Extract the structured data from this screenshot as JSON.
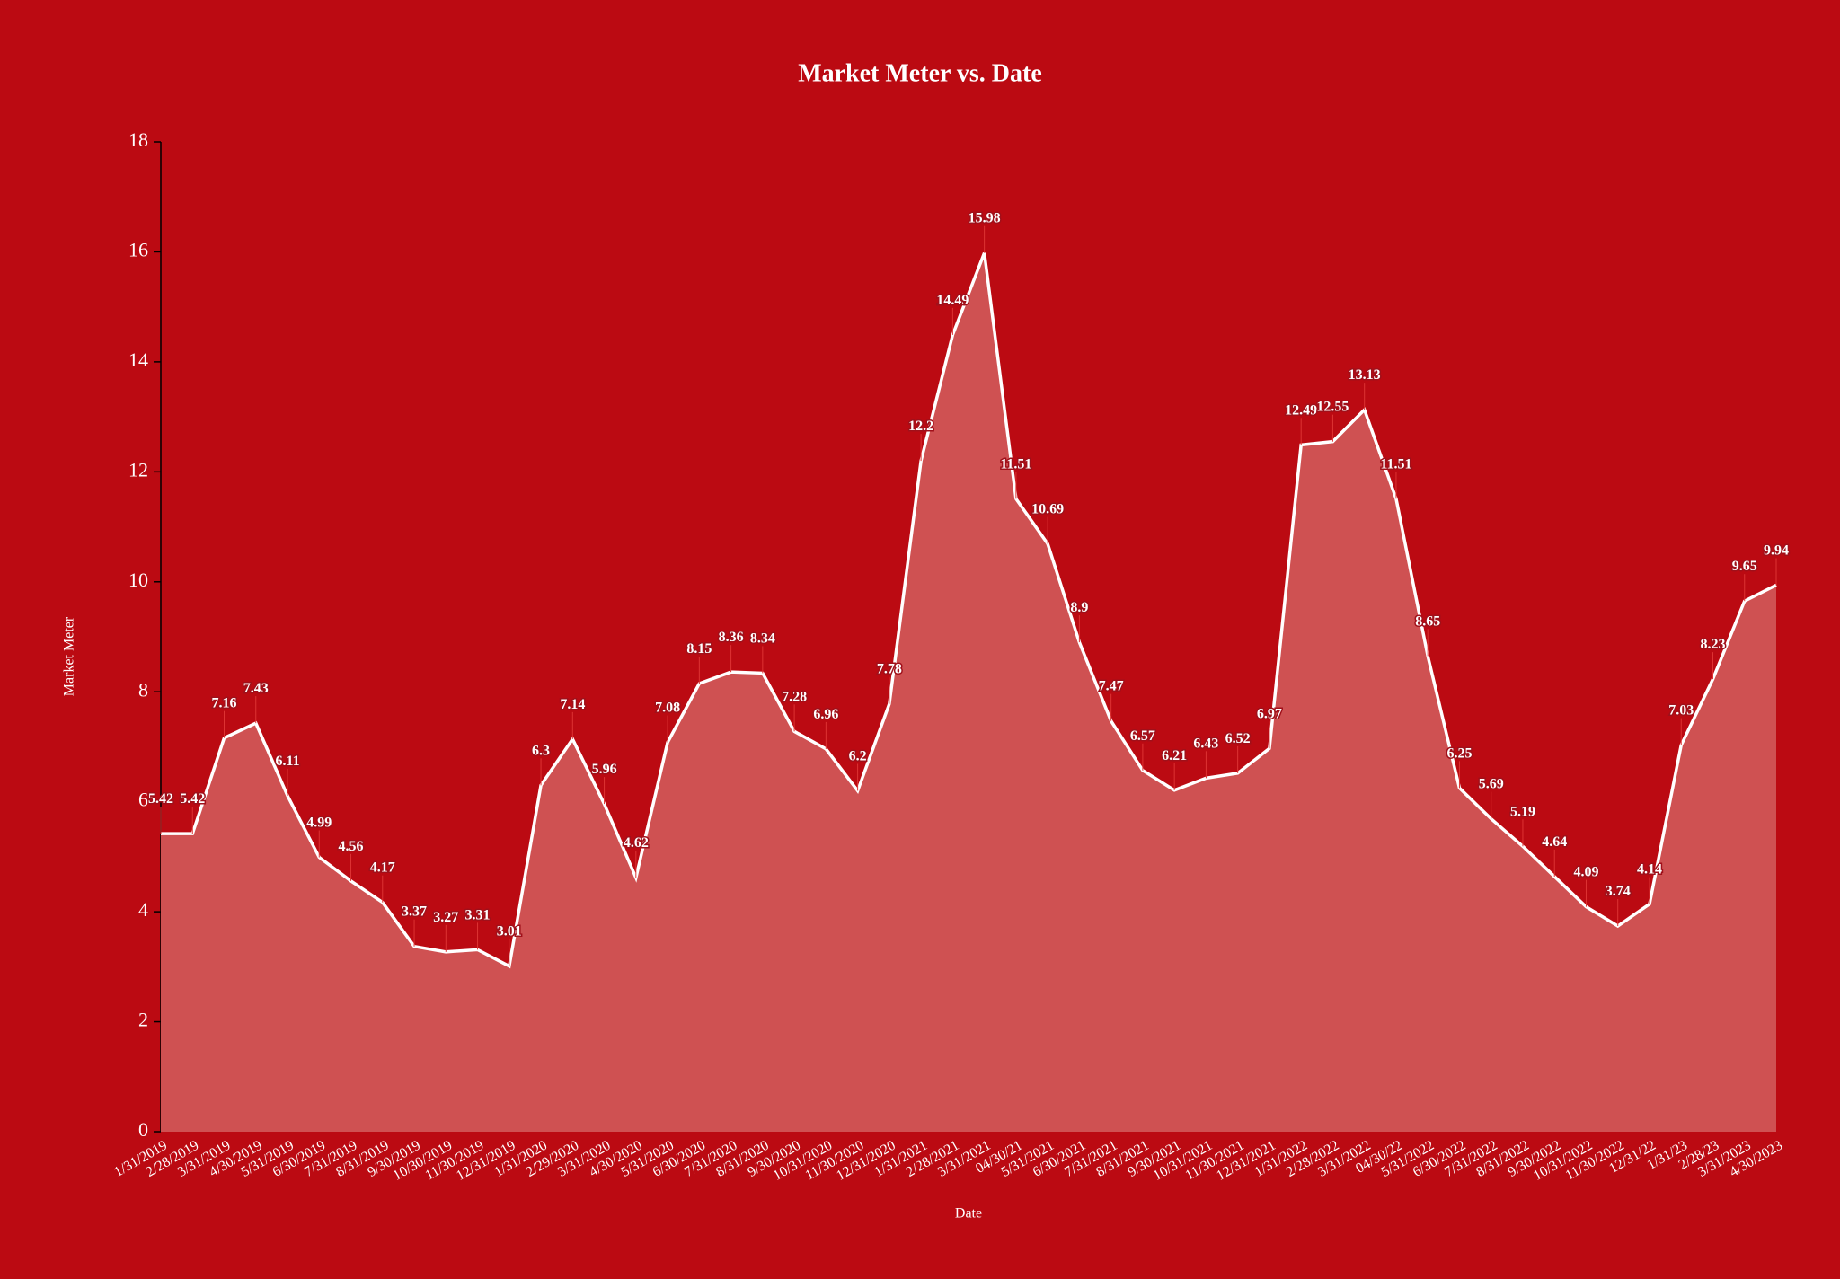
{
  "chart_data": {
    "type": "area",
    "title": "Market Meter vs. Date",
    "x_label": "Date",
    "y_label": "Market Meter",
    "categories": [
      "1/31/2019",
      "2/28/2019",
      "3/31/2019",
      "4/30/2019",
      "5/31/2019",
      "6/30/2019",
      "7/31/2019",
      "8/31/2019",
      "9/30/2019",
      "10/30/2019",
      "11/30/2019",
      "12/31/2019",
      "1/31/2020",
      "2/29/2020",
      "3/31/2020",
      "4/30/2020",
      "5/31/2020",
      "6/30/2020",
      "7/31/2020",
      "8/31/2020",
      "9/30/2020",
      "10/31/2020",
      "11/30/2020",
      "12/31/2020",
      "1/31/2021",
      "2/28/2021",
      "3/31/2021",
      "04/30/21",
      "5/31/2021",
      "6/30/2021",
      "7/31/2021",
      "8/31/2021",
      "9/30/2021",
      "10/31/2021",
      "11/30/2021",
      "12/31/2021",
      "1/31/2022",
      "2/28/2022",
      "3/31/2022",
      "04/30/22",
      "5/31/2022",
      "6/30/2022",
      "7/31/2022",
      "8/31/2022",
      "9/30/2022",
      "10/31/2022",
      "11/30/2022",
      "12/31/22",
      "1/31/23",
      "2/28/23",
      "3/31/2023",
      "4/30/2023"
    ],
    "values": [
      5.42,
      5.42,
      7.16,
      7.43,
      6.11,
      4.99,
      4.56,
      4.17,
      3.37,
      3.27,
      3.31,
      3.01,
      6.3,
      7.14,
      5.96,
      4.62,
      7.08,
      8.15,
      8.36,
      8.34,
      7.28,
      6.96,
      6.2,
      7.78,
      12.2,
      14.49,
      15.98,
      11.51,
      10.69,
      8.9,
      7.47,
      6.57,
      6.21,
      6.43,
      6.52,
      6.97,
      12.49,
      12.55,
      13.13,
      11.51,
      8.65,
      6.25,
      5.69,
      5.19,
      4.64,
      4.09,
      3.74,
      4.14,
      7.03,
      8.23,
      9.65,
      9.94
    ],
    "color": "#ffffff",
    "fill": "#cf5152",
    "ylim": [
      0,
      18
    ],
    "yticks": [
      0,
      2,
      4,
      6,
      8,
      10,
      12,
      14,
      16,
      18
    ]
  }
}
